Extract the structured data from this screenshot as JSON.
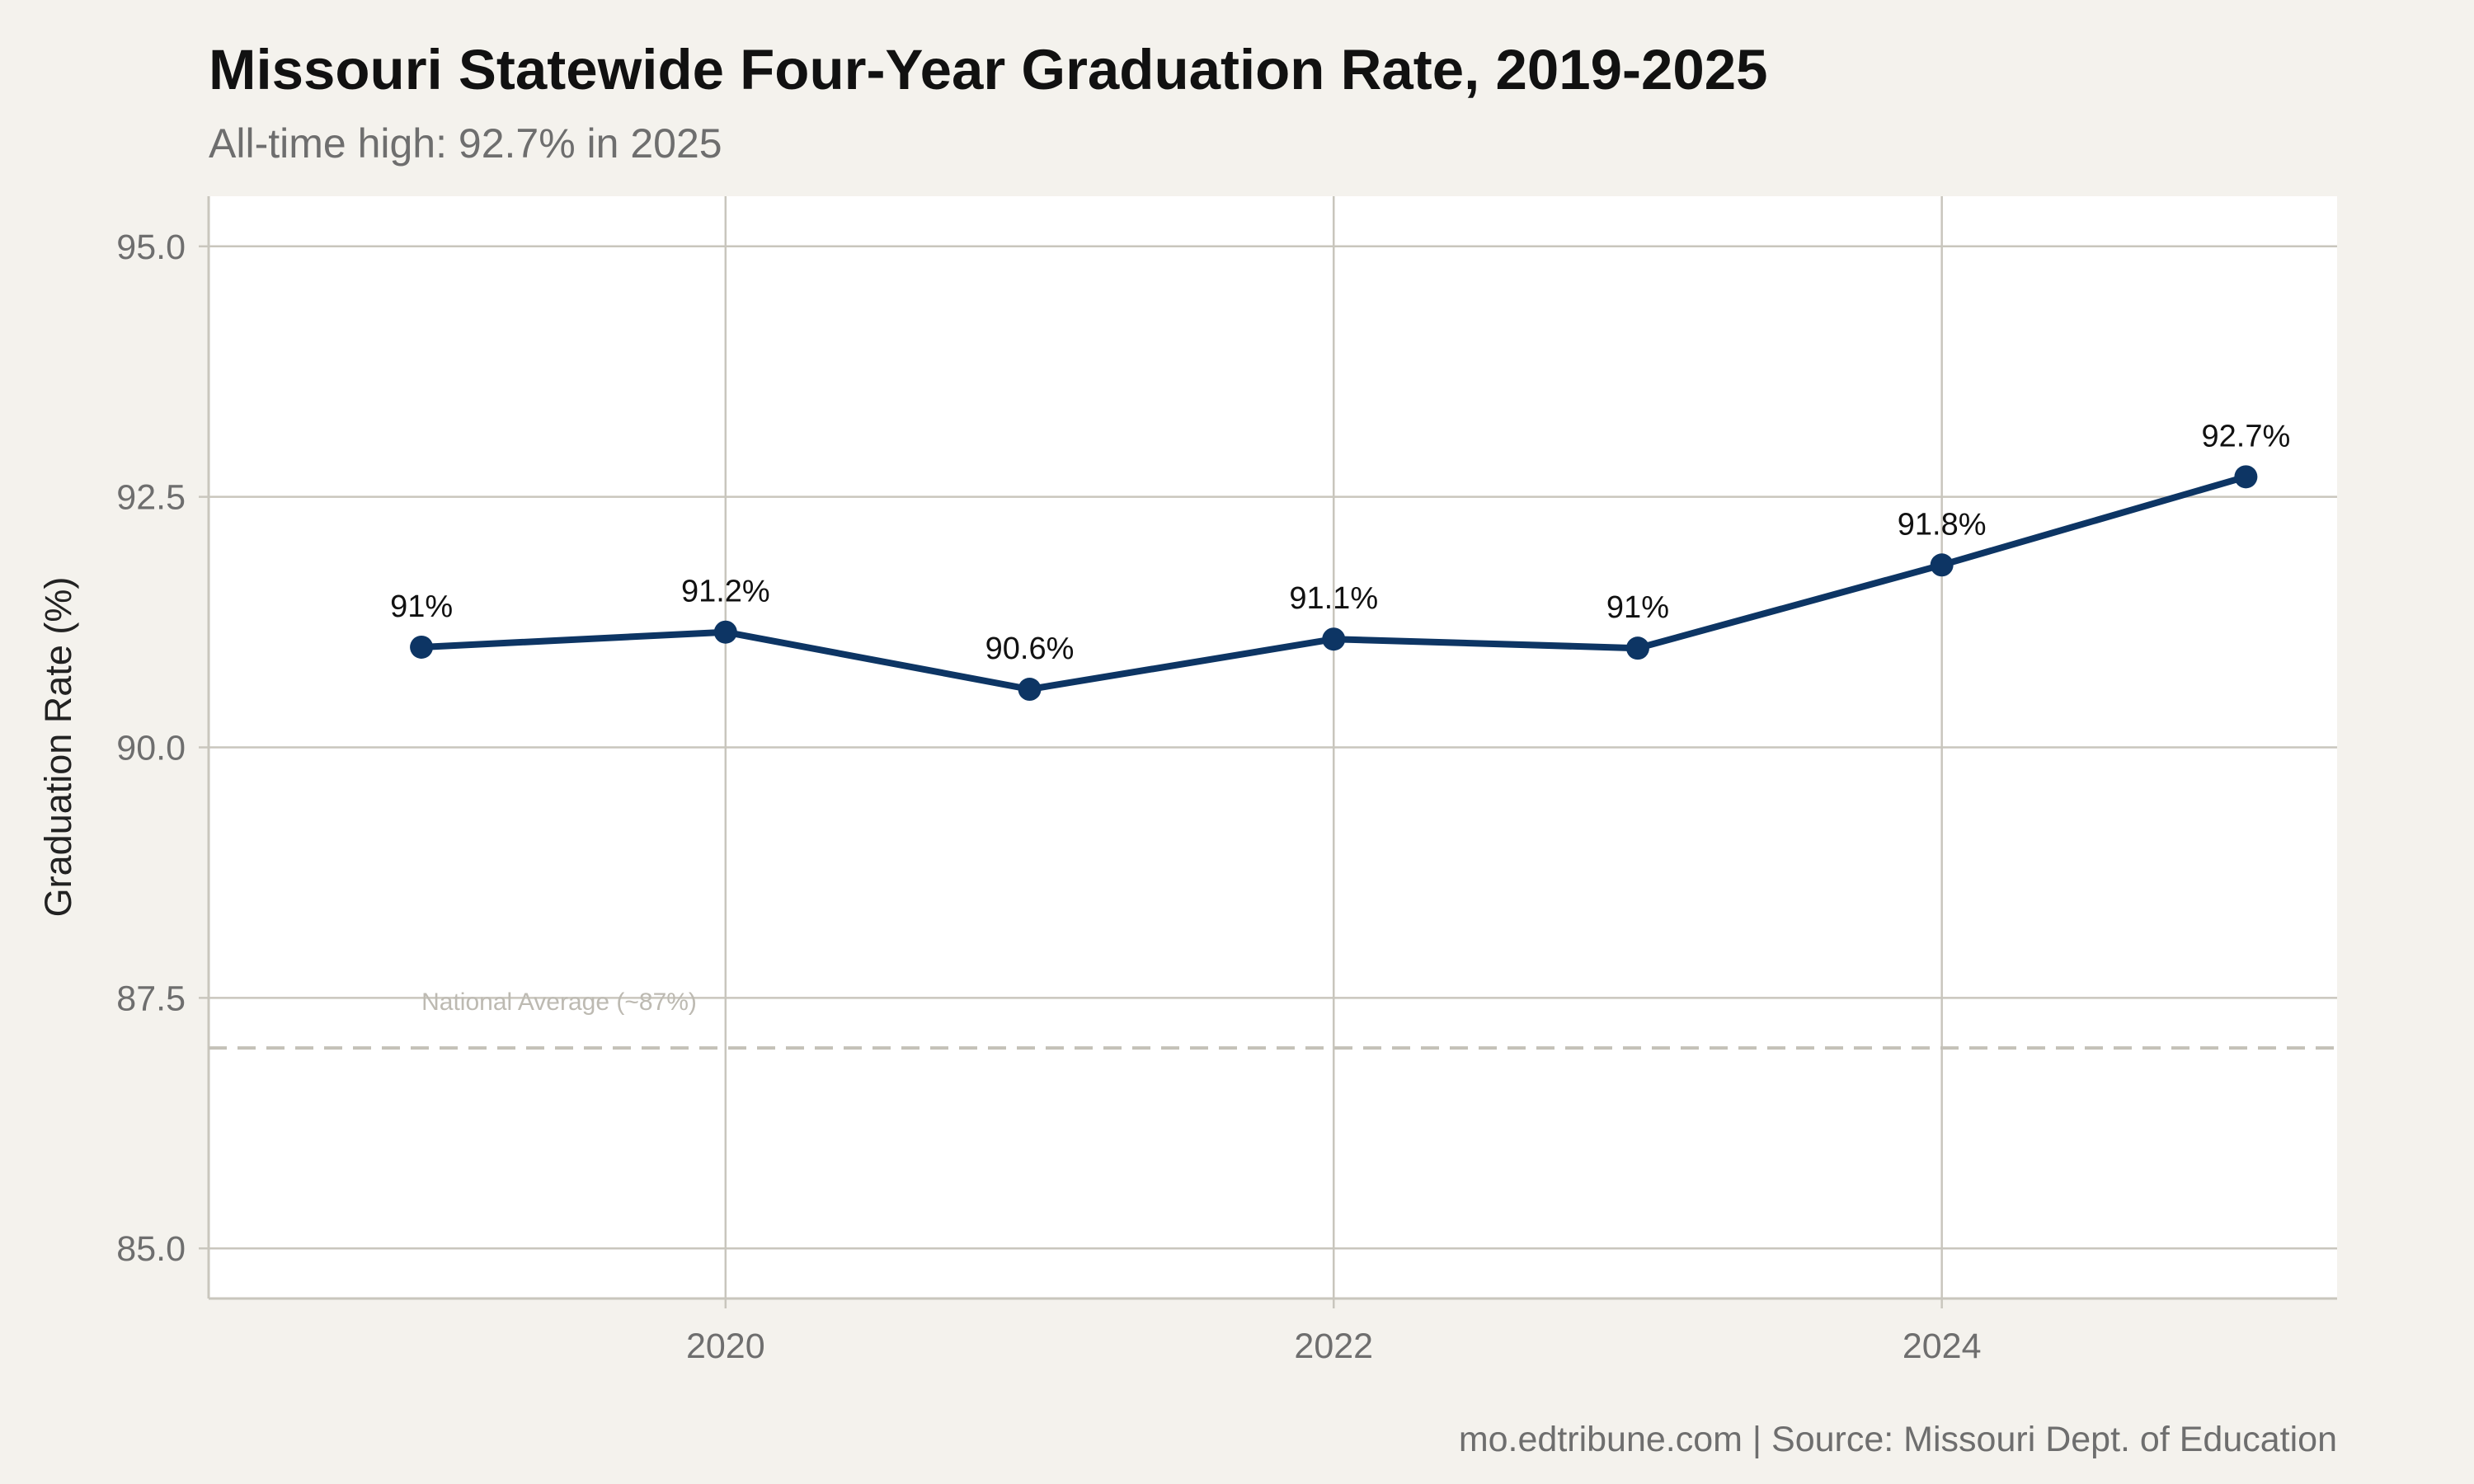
{
  "title": "Missouri Statewide Four-Year Graduation Rate, 2019-2025",
  "subtitle": "All-time high: 92.7% in 2025",
  "caption": "mo.edtribune.com | Source: Missouri Dept. of Education",
  "colors": {
    "background": "#f4f2ed",
    "panel": "#ffffff",
    "grid": "#c9c6bd",
    "line": "#0d3564",
    "reference": "#c4c1b8",
    "reference_label": "#bdbab2"
  },
  "chart_data": {
    "type": "line",
    "x": [
      2019,
      2020,
      2021,
      2022,
      2023,
      2024,
      2025
    ],
    "series": [
      {
        "values": [
          91.0,
          91.15,
          90.58,
          91.08,
          90.99,
          91.82,
          92.7
        ],
        "labels": [
          "91%",
          "91.2%",
          "90.6%",
          "91.1%",
          "91%",
          "91.8%",
          "92.7%"
        ]
      }
    ],
    "title": "Missouri Statewide Four-Year Graduation Rate, 2019-2025",
    "subtitle": "All-time high: 92.7% in 2025",
    "xlabel": "",
    "ylabel": "Graduation Rate (%)",
    "xlim": [
      2018.3,
      2025.3
    ],
    "ylim": [
      84.5,
      95.5
    ],
    "x_ticks": [
      2020,
      2022,
      2024
    ],
    "x_tick_labels": [
      "2020",
      "2022",
      "2024"
    ],
    "y_ticks": [
      85,
      87.5,
      90,
      92.5,
      95
    ],
    "y_tick_labels": [
      "85.0",
      "87.5",
      "90.0",
      "92.5",
      "95.0"
    ],
    "reference_line": {
      "value": 87,
      "label": "National Average (~87%)",
      "style": "dashed"
    },
    "grid": true,
    "legend": "none"
  }
}
